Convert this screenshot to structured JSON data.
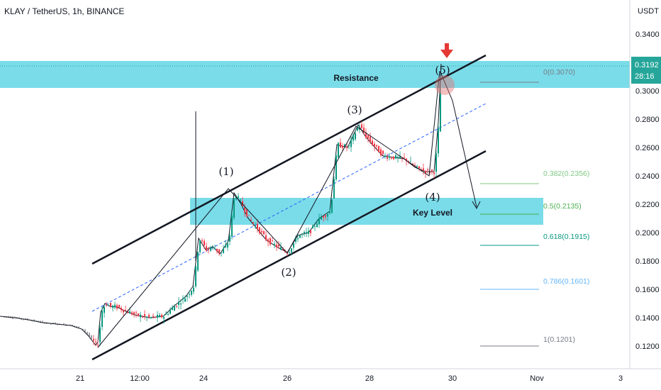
{
  "header": {
    "title": "KLAY / TetherUS, 1h, BINANCE",
    "currency": "USDT"
  },
  "price_marker": {
    "price": "0.3192",
    "countdown": "28:16",
    "color": "#26a69a"
  },
  "zones": {
    "resistance_label": "Resistance",
    "key_level_label": "Key Level",
    "color": "#4dd0e1"
  },
  "waves": [
    "(1)",
    "(2)",
    "(3)",
    "(4)",
    "(5)"
  ],
  "fib_levels": [
    {
      "label": "0(0.3070)",
      "value": 0.307,
      "color": "#787b86"
    },
    {
      "label": "0.382(0.2356)",
      "value": 0.2356,
      "color": "#81c784"
    },
    {
      "label": "0.5(0.2135)",
      "value": 0.2135,
      "color": "#4caf50"
    },
    {
      "label": "0.618(0.1915)",
      "value": 0.1915,
      "color": "#089981"
    },
    {
      "label": "0.786(0.1601)",
      "value": 0.1601,
      "color": "#64b5f6"
    },
    {
      "label": "1(0.1201)",
      "value": 0.1201,
      "color": "#787b86"
    }
  ],
  "chart_data": {
    "type": "line",
    "title": "KLAY / TetherUS, 1h, BINANCE",
    "ylabel": "USDT",
    "ylim": [
      0.112,
      0.356
    ],
    "y_ticks": [
      "0.3400",
      "0.3200",
      "0.3000",
      "0.2800",
      "0.2600",
      "0.2400",
      "0.2200",
      "0.2000",
      "0.1800",
      "0.1600",
      "0.1400",
      "0.1200"
    ],
    "x_ticks": [
      "21",
      "12:00",
      "24",
      "26",
      "28",
      "30",
      "Nov",
      "3"
    ],
    "grid": false,
    "series": [
      {
        "values": [
          [
            0,
            0.141
          ],
          [
            20,
            0.14
          ],
          [
            40,
            0.1385
          ],
          [
            60,
            0.1365
          ],
          [
            80,
            0.1355
          ],
          [
            100,
            0.1345
          ],
          [
            115,
            0.132
          ],
          [
            125,
            0.127
          ],
          [
            135,
            0.1205
          ],
          [
            138,
            0.123
          ],
          [
            142,
            0.144
          ],
          [
            148,
            0.15
          ],
          [
            155,
            0.148
          ],
          [
            165,
            0.1475
          ],
          [
            175,
            0.145
          ],
          [
            190,
            0.142
          ],
          [
            210,
            0.14
          ],
          [
            230,
            0.141
          ],
          [
            245,
            0.148
          ],
          [
            262,
            0.155
          ],
          [
            272,
            0.162
          ],
          [
            280,
            0.196
          ],
          [
            290,
            0.188
          ],
          [
            300,
            0.19
          ],
          [
            310,
            0.185
          ],
          [
            322,
            0.194
          ],
          [
            330,
            0.228
          ],
          [
            340,
            0.22
          ],
          [
            350,
            0.21
          ],
          [
            362,
            0.203
          ],
          [
            375,
            0.195
          ],
          [
            390,
            0.19
          ],
          [
            405,
            0.186
          ],
          [
            420,
            0.198
          ],
          [
            435,
            0.2
          ],
          [
            450,
            0.21
          ],
          [
            465,
            0.215
          ],
          [
            475,
            0.262
          ],
          [
            490,
            0.26
          ],
          [
            505,
            0.276
          ],
          [
            515,
            0.268
          ],
          [
            525,
            0.262
          ],
          [
            540,
            0.254
          ],
          [
            555,
            0.253
          ],
          [
            570,
            0.252
          ],
          [
            585,
            0.246
          ],
          [
            600,
            0.243
          ],
          [
            612,
            0.243
          ],
          [
            618,
            0.278
          ],
          [
            622,
            0.319
          ]
        ]
      }
    ],
    "annotations": [
      "(1)",
      "(2)",
      "(3)",
      "(4)",
      "(5)",
      "Resistance",
      "Key Level"
    ]
  }
}
